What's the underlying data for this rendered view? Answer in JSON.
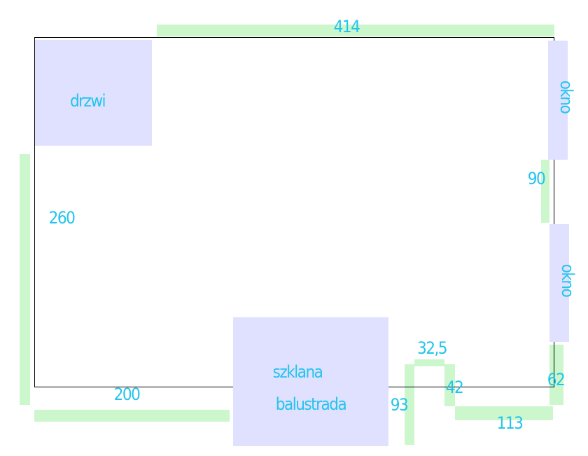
{
  "labels": {
    "door": "drzwi",
    "window_top": "okno",
    "window_bottom": "okno",
    "balcony_line1": "szklana",
    "balcony_line2": "balustrada"
  },
  "dimensions": [
    "414",
    "260",
    "200",
    "90",
    "62",
    "93",
    "32,5",
    "42",
    "113"
  ]
}
